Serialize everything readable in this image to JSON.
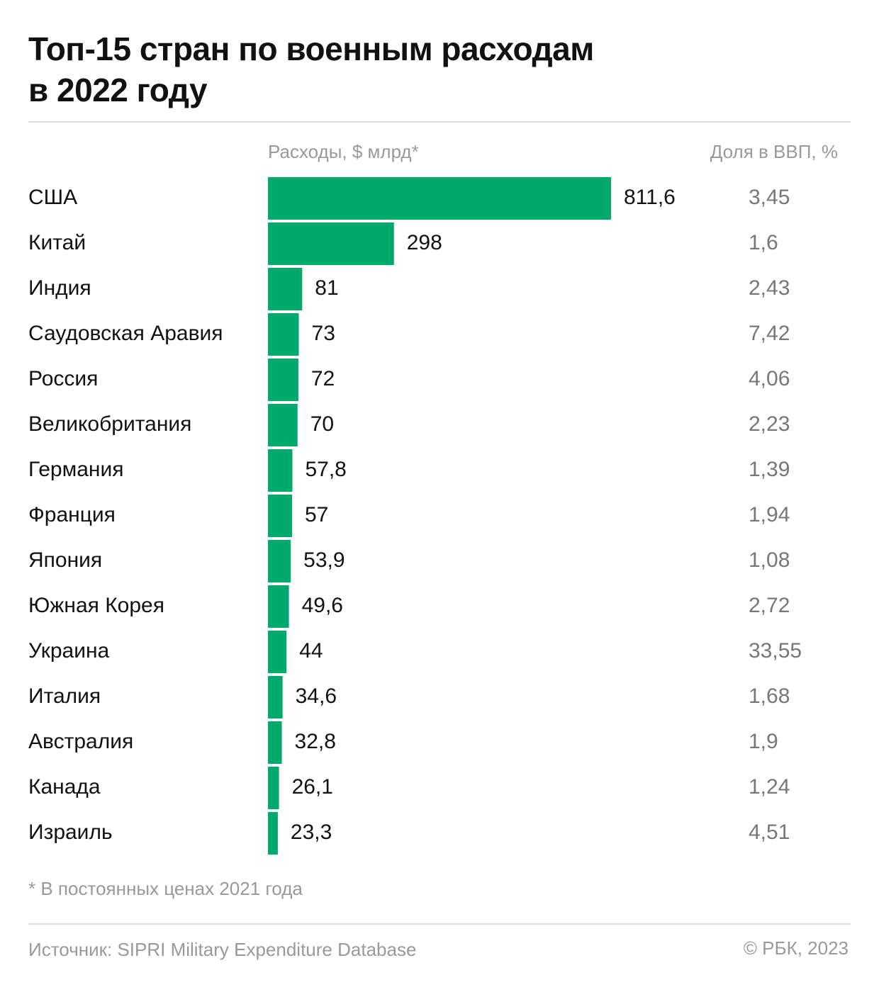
{
  "chart_data": {
    "type": "bar",
    "title": "Топ-15 стран по военным расходам\nв 2022 году",
    "categories": [
      "США",
      "Китай",
      "Индия",
      "Саудовская Аравия",
      "Россия",
      "Великобритания",
      "Германия",
      "Франция",
      "Япония",
      "Южная Корея",
      "Украина",
      "Италия",
      "Австралия",
      "Канада",
      "Израиль"
    ],
    "series": [
      {
        "name": "Расходы, $ млрд*",
        "color": "#00a86b",
        "values": [
          811.6,
          298,
          81,
          73,
          72,
          70,
          57.8,
          57,
          53.9,
          49.6,
          44,
          34.6,
          32.8,
          26.1,
          23.3
        ],
        "value_labels": [
          "811,6",
          "298",
          "81",
          "73",
          "72",
          "70",
          "57,8",
          "57",
          "53,9",
          "49,6",
          "44",
          "34,6",
          "32,8",
          "26,1",
          "23,3"
        ]
      },
      {
        "name": "Доля в ВВП, %",
        "values": [
          3.45,
          1.6,
          2.43,
          7.42,
          4.06,
          2.23,
          1.39,
          1.94,
          1.08,
          2.72,
          33.55,
          1.68,
          1.9,
          1.24,
          4.51
        ],
        "value_labels": [
          "3,45",
          "1,6",
          "2,43",
          "7,42",
          "4,06",
          "2,23",
          "1,39",
          "1,94",
          "1,08",
          "2,72",
          "33,55",
          "1,68",
          "1,9",
          "1,24",
          "4,51"
        ]
      }
    ],
    "footnote": "* В постоянных ценах 2021 года",
    "source": "Источник: SIPRI Military Expenditure Database",
    "copyright": "© РБК, 2023"
  }
}
